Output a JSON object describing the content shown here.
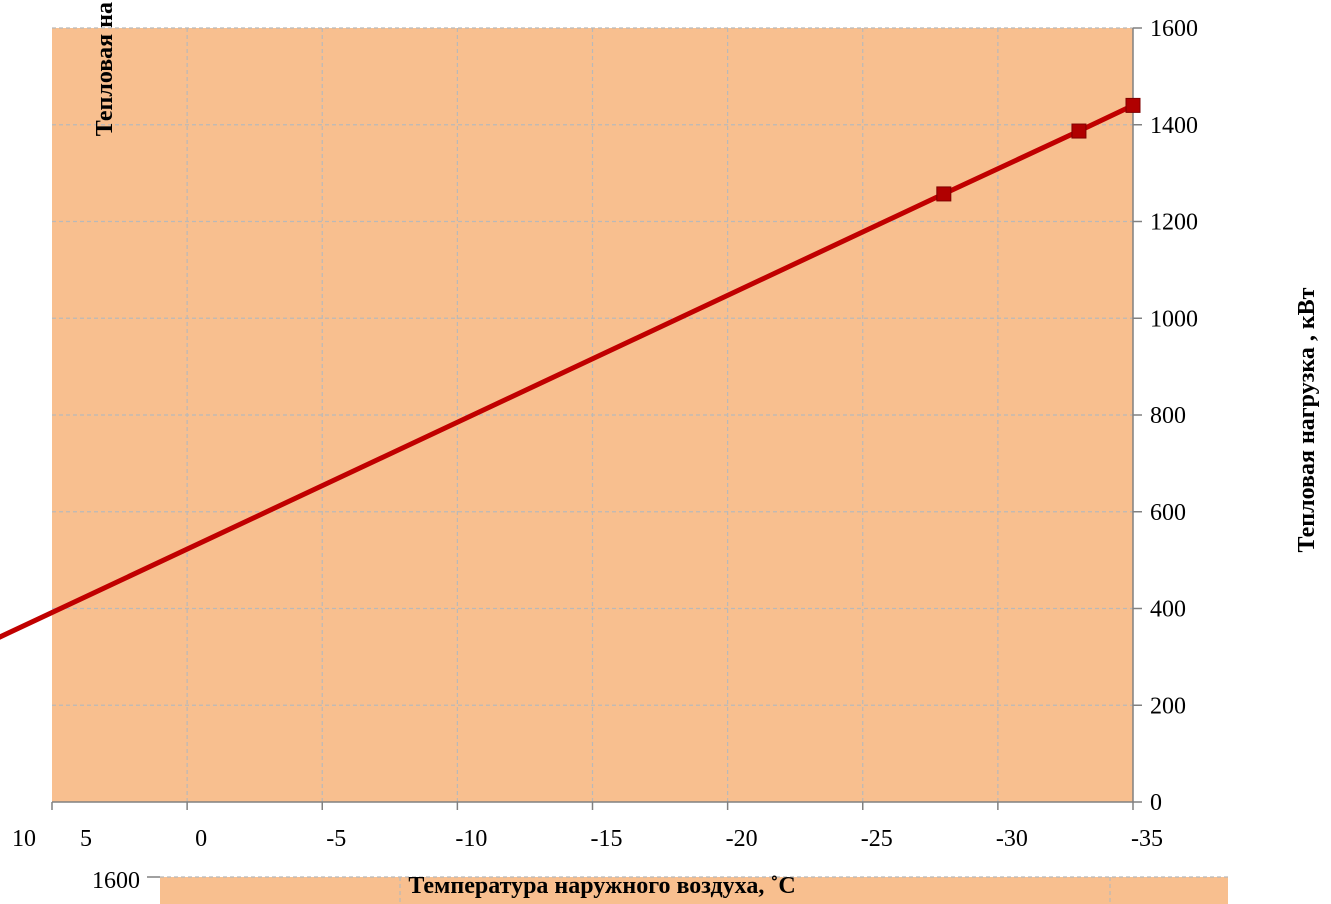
{
  "chart_data": {
    "type": "line",
    "title": "",
    "xlabel": "Температура наружного воздуха, ˚С",
    "ylabel": "Тепловая нагрузка , кВт",
    "ylabel_clipped": "Тепловая на",
    "xlim": [
      10,
      -35
    ],
    "ylim": [
      0,
      1600
    ],
    "x_ticks": [
      10,
      5,
      0,
      -5,
      -10,
      -15,
      -20,
      -25,
      -30,
      -35
    ],
    "x_tick_labels": [
      "10",
      "5",
      "0",
      "-5",
      "-10",
      "-15",
      "-20",
      "-25",
      "-30",
      "-35"
    ],
    "y_ticks": [
      0,
      200,
      400,
      600,
      800,
      1000,
      1200,
      1400,
      1600
    ],
    "y_tick_labels": [
      "0",
      "200",
      "400",
      "600",
      "800",
      "1000",
      "1200",
      "1400",
      "1600"
    ],
    "second_chart_top_label": "1600",
    "grid": true,
    "legend": "none",
    "series": [
      {
        "x": [
          8,
          8,
          -28,
          -33,
          -35
        ],
        "y": [
          0,
          313,
          1257,
          1387,
          1440
        ],
        "color": "#c00000",
        "marker": "square"
      }
    ],
    "colors": {
      "plot_background": "#f8bf8f",
      "grid": "#b9b9b9",
      "series": "#c00000",
      "marker": "#b00000"
    }
  }
}
